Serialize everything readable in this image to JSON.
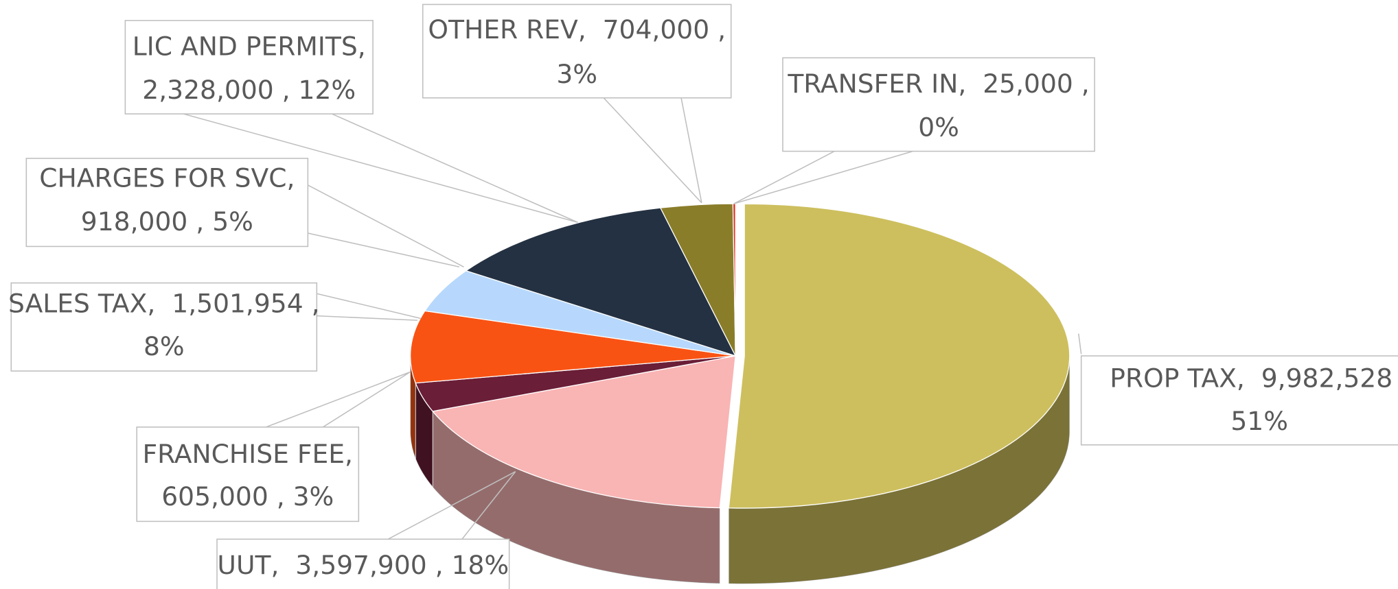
{
  "chart_data": {
    "type": "pie",
    "values": [
      9982528,
      3597900,
      605000,
      1501954,
      918000,
      2328000,
      704000,
      25000
    ],
    "value_labels": [
      [
        "PROP TAX,  9,982,528 ,",
        "51%"
      ],
      [
        "UUT,  3,597,900 , 18%"
      ],
      [
        "FRANCHISE FEE,",
        "605,000 , 3%"
      ],
      [
        "SALES TAX,  1,501,954 ,",
        "8%"
      ],
      [
        "CHARGES FOR SVC,",
        "918,000 , 5%"
      ],
      [
        "LIC AND PERMITS,",
        "2,328,000 , 12%"
      ],
      [
        "OTHER REV,  704,000 ,",
        "3%"
      ],
      [
        "TRANSFER IN,  25,000 ,",
        "0%"
      ]
    ],
    "colors": [
      "#cdbf5e",
      "#f9b4b4",
      "#6b1e37",
      "#f95314",
      "#b7d8fc",
      "#243142",
      "#8a7d2a",
      "#e03020"
    ]
  }
}
